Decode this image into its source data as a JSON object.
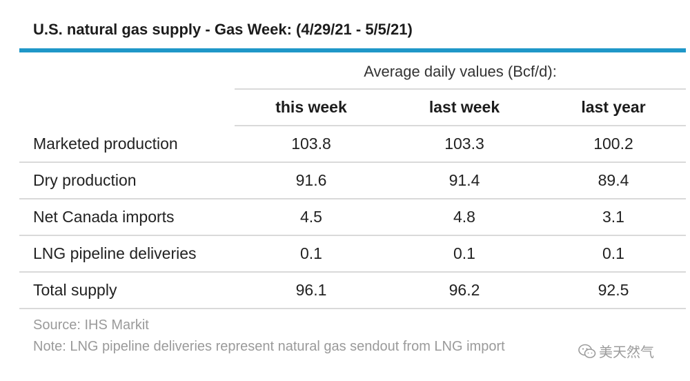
{
  "title": "U.S. natural gas supply - Gas Week: (4/29/21 - 5/5/21)",
  "table": {
    "group_header": "Average daily values (Bcf/d):",
    "columns": [
      "this week",
      "last week",
      "last year"
    ],
    "rows": [
      {
        "label": "Marketed production",
        "values": [
          "103.8",
          "103.3",
          "100.2"
        ]
      },
      {
        "label": "Dry production",
        "values": [
          "91.6",
          "91.4",
          "89.4"
        ]
      },
      {
        "label": "Net Canada imports",
        "values": [
          "4.5",
          "4.8",
          "3.1"
        ]
      },
      {
        "label": "LNG pipeline deliveries",
        "values": [
          "0.1",
          "0.1",
          "0.1"
        ]
      },
      {
        "label": "Total supply",
        "values": [
          "96.1",
          "96.2",
          "92.5"
        ]
      }
    ]
  },
  "footer": {
    "source": "Source: IHS Markit",
    "note": "Note: LNG pipeline deliveries represent natural gas sendout from LNG import"
  },
  "watermark": {
    "text": "美天然气",
    "icon": "wechat-icon"
  },
  "colors": {
    "accent_rule": "#1f97c8",
    "row_divider": "#d9d9d9",
    "footnote_text": "#9a9a9a"
  }
}
